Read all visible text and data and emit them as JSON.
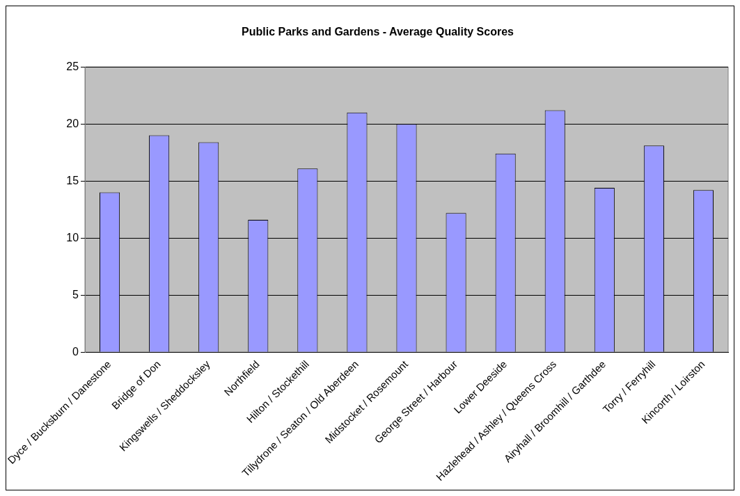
{
  "chart_data": {
    "type": "bar",
    "title": "Public Parks and Gardens - Average Quality Scores",
    "categories": [
      "Dyce / Bucksburn / Danestone",
      "Bridge of Don",
      "Kingswells / Sheddocksley",
      "Northfield",
      "Hilton / Stockethill",
      "Tillydrone / Seaton / Old Aberdeen",
      "Midstocket / Rosemount",
      "George Street / Harbour",
      "Lower Deeside",
      "Hazlehead / Ashley / Queens Cross",
      "Airyhall / Broomhill / Garthdee",
      "Torry / Ferryhill",
      "Kincorth / Loirston"
    ],
    "values": [
      14.0,
      19.0,
      18.4,
      11.6,
      16.1,
      21.0,
      20.0,
      12.2,
      17.4,
      21.2,
      14.4,
      18.1,
      14.2
    ],
    "color": "#9999ff",
    "ylim": [
      0,
      25
    ],
    "yticks": [
      0,
      5,
      10,
      15,
      20,
      25
    ],
    "grid": "y",
    "legend": false
  }
}
